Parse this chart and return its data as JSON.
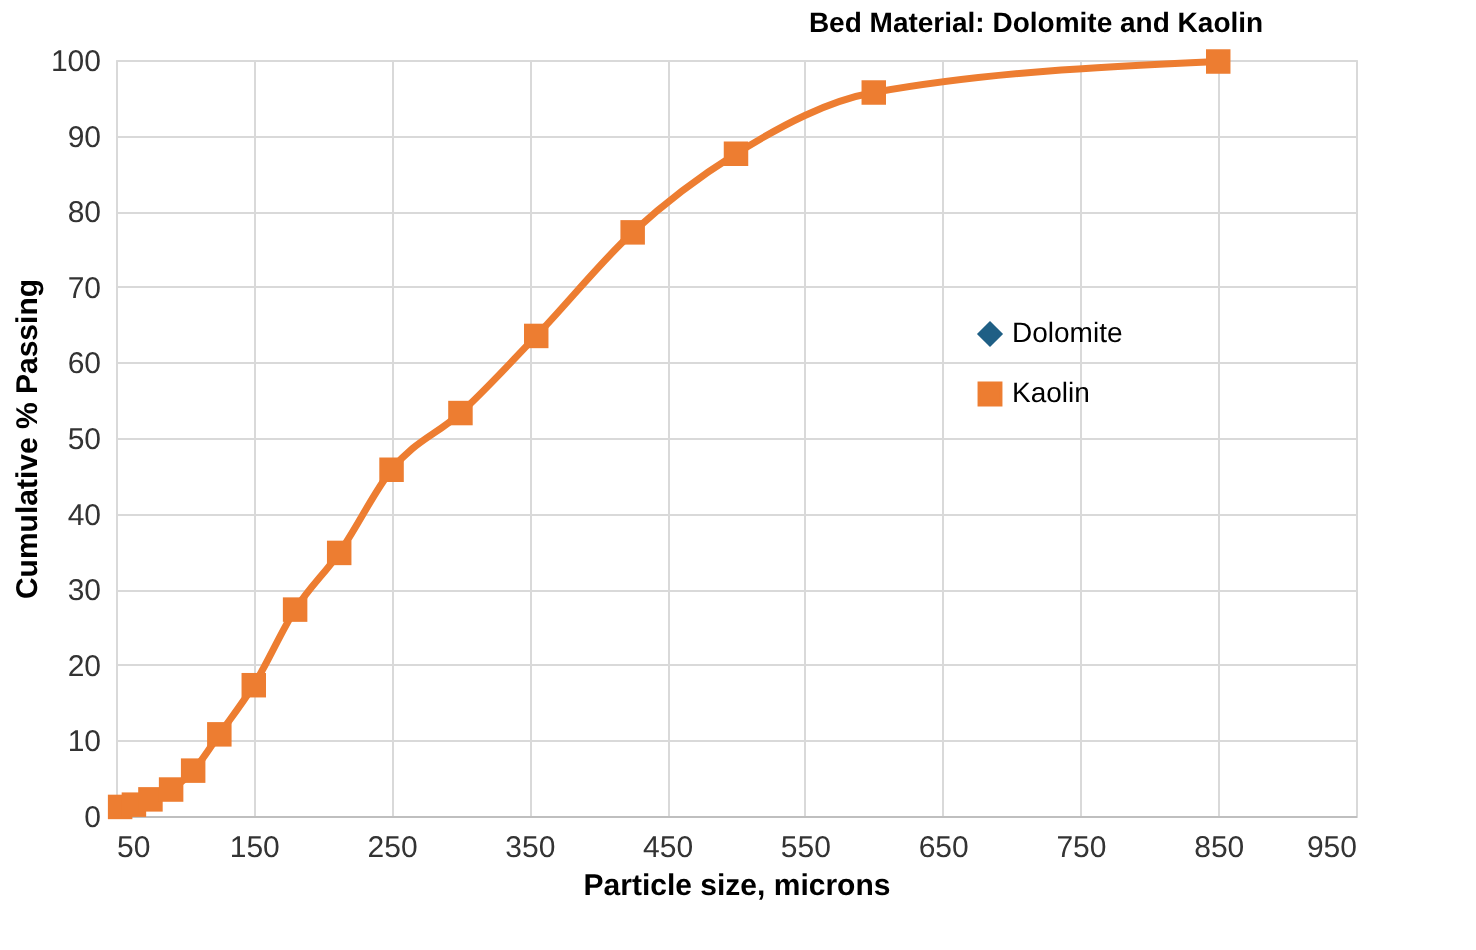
{
  "chart_data": {
    "type": "line",
    "title": "Bed Material: Dolomite and Kaolin",
    "xlabel": "Particle size, microns",
    "ylabel": "Cumulative % Passing",
    "x": [
      53,
      63,
      75,
      90,
      106,
      125,
      150,
      180,
      212,
      250,
      300,
      355,
      425,
      500,
      600,
      850
    ],
    "series": [
      {
        "name": "Dolomite",
        "color": "#1f5f85",
        "marker": "diamond",
        "values": [
          null,
          null,
          null,
          null,
          null,
          null,
          null,
          null,
          null,
          null,
          null,
          null,
          null,
          null,
          null,
          null
        ]
      },
      {
        "name": "Kaolin",
        "color": "#ed7d31",
        "marker": "square",
        "values": [
          1.2,
          1.5,
          2.2,
          3.5,
          6,
          10.8,
          17.3,
          27.3,
          34.8,
          45.8,
          53.3,
          63.5,
          77.2,
          87.6,
          95.7,
          99.8
        ]
      }
    ],
    "xlim": [
      50,
      950
    ],
    "xticks": [
      50,
      150,
      250,
      350,
      450,
      550,
      650,
      750,
      850,
      950
    ],
    "ylim": [
      0,
      100
    ],
    "yticks": [
      0,
      10,
      20,
      30,
      40,
      50,
      60,
      70,
      80,
      90,
      100
    ],
    "grid": true,
    "legend": "right",
    "line_style": "solid"
  }
}
